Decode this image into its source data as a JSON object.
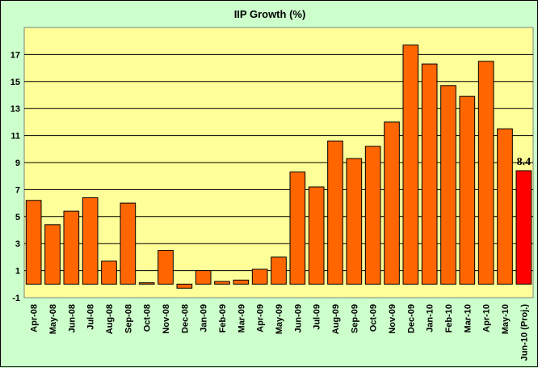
{
  "chart_data": {
    "type": "bar",
    "title": "IIP Growth (%)",
    "categories": [
      "Apr-08",
      "May-08",
      "Jun-08",
      "Jul-08",
      "Aug-08",
      "Sep-08",
      "Oct-08",
      "Nov-08",
      "Dec-08",
      "Jan-09",
      "Feb-09",
      "Mar-09",
      "Apr-09",
      "May-09",
      "Jun-09",
      "Jul-09",
      "Aug-09",
      "Sep-09",
      "Oct-09",
      "Nov-09",
      "Dec-09",
      "Jan-10",
      "Feb-10",
      "Mar-10",
      "Apr-10",
      "May-10",
      "Jun-10 (Proj.)"
    ],
    "values": [
      6.2,
      4.4,
      5.4,
      6.4,
      1.7,
      6.0,
      0.1,
      2.5,
      -0.3,
      1.0,
      0.2,
      0.3,
      1.1,
      2.0,
      8.3,
      7.2,
      10.6,
      9.3,
      10.2,
      12.0,
      17.7,
      16.3,
      14.7,
      13.9,
      16.5,
      11.5,
      8.4
    ],
    "highlight_index": 26,
    "data_labels": [
      {
        "index": 26,
        "text": "8.4"
      }
    ],
    "yticks": [
      "-1",
      "1",
      "3",
      "5",
      "7",
      "9",
      "11",
      "13",
      "15",
      "17"
    ],
    "ylim": [
      -1,
      19
    ],
    "grid": true,
    "xlabel": "",
    "ylabel": "",
    "colors": {
      "bar": "#ff6600",
      "highlight_bar": "#ff0000",
      "plot_background": "#ffff99",
      "page_background": "#ccffcc",
      "gridline": "#000000"
    }
  }
}
